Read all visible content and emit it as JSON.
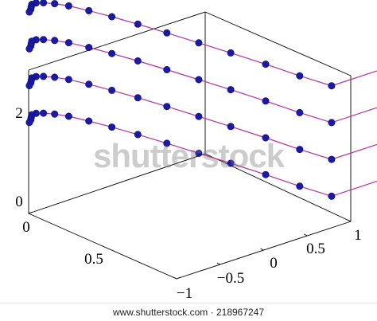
{
  "chart_data": {
    "type": "line3d",
    "title": "",
    "xlabel": "",
    "ylabel": "",
    "zlabel": "",
    "x_ticks": [
      "0",
      "0.5"
    ],
    "y_ticks": [
      "−1",
      "−0.5",
      "0",
      "0.5",
      "1"
    ],
    "z_ticks": [
      "0",
      "2"
    ],
    "grid": false,
    "series": [
      {
        "x": [
          0,
          0,
          0.09,
          0.19,
          0.29,
          0.38,
          0.47,
          0.55,
          0.62,
          0.68,
          0.73,
          0.76,
          0.78,
          0.79,
          0.79,
          0.78,
          0.77,
          0.76
        ],
        "y": [
          1.4,
          0.78,
          0.72,
          0.67,
          0.61,
          0.55,
          0.49,
          0.43,
          0.37,
          0.31,
          0.25,
          0.19,
          0.13,
          0.08,
          0.03,
          -0.01,
          -0.05,
          -0.1
        ],
        "z": [
          0.6,
          0.6,
          0.6,
          0.6,
          0.6,
          0.6,
          0.6,
          0.6,
          0.6,
          0.6,
          0.6,
          0.6,
          0.6,
          0.6,
          0.6,
          0.6,
          0.6,
          0.6
        ]
      },
      {
        "x": [
          0,
          0,
          0.09,
          0.19,
          0.29,
          0.38,
          0.47,
          0.55,
          0.62,
          0.68,
          0.73,
          0.76,
          0.78,
          0.79,
          0.79,
          0.78,
          0.77,
          0.76
        ],
        "y": [
          1.4,
          0.78,
          0.72,
          0.67,
          0.61,
          0.55,
          0.49,
          0.43,
          0.37,
          0.31,
          0.25,
          0.19,
          0.13,
          0.08,
          0.03,
          -0.01,
          -0.05,
          -0.1
        ],
        "z": [
          1.3,
          1.3,
          1.3,
          1.3,
          1.3,
          1.3,
          1.3,
          1.3,
          1.3,
          1.3,
          1.3,
          1.3,
          1.3,
          1.3,
          1.3,
          1.3,
          1.3,
          1.3
        ]
      },
      {
        "x": [
          0,
          0,
          0.09,
          0.19,
          0.29,
          0.38,
          0.47,
          0.55,
          0.62,
          0.68,
          0.73,
          0.76,
          0.78,
          0.79,
          0.79,
          0.78,
          0.77,
          0.76
        ],
        "y": [
          1.4,
          0.78,
          0.72,
          0.67,
          0.61,
          0.55,
          0.49,
          0.43,
          0.37,
          0.31,
          0.25,
          0.19,
          0.13,
          0.08,
          0.03,
          -0.01,
          -0.05,
          -0.1
        ],
        "z": [
          2.0,
          2.0,
          2.0,
          2.0,
          2.0,
          2.0,
          2.0,
          2.0,
          2.0,
          2.0,
          2.0,
          2.0,
          2.0,
          2.0,
          2.0,
          2.0,
          2.0,
          2.0
        ]
      },
      {
        "x": [
          0,
          0,
          0.09,
          0.19,
          0.29,
          0.38,
          0.47,
          0.55,
          0.62,
          0.68,
          0.73,
          0.76,
          0.78,
          0.79,
          0.79,
          0.78,
          0.77,
          0.76
        ],
        "y": [
          1.4,
          0.78,
          0.72,
          0.67,
          0.61,
          0.55,
          0.49,
          0.43,
          0.37,
          0.31,
          0.25,
          0.19,
          0.13,
          0.08,
          0.03,
          -0.01,
          -0.05,
          -0.1
        ],
        "z": [
          2.7,
          2.7,
          2.7,
          2.7,
          2.7,
          2.7,
          2.7,
          2.7,
          2.7,
          2.7,
          2.7,
          2.7,
          2.7,
          2.7,
          2.7,
          2.7,
          2.7,
          2.7
        ]
      }
    ],
    "line_color": "#b8309a",
    "marker_color": "#1a1aa6"
  },
  "watermark": "shutterstock",
  "footer": "www.shutterstock.com · 218967247"
}
